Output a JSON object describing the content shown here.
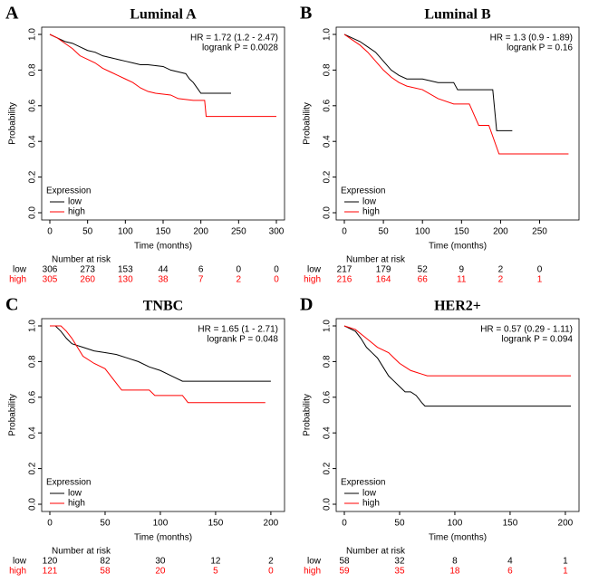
{
  "chart_data": [
    {
      "type": "line",
      "panel": "A",
      "title": "Luminal A",
      "annotations": [
        "HR = 1.72 (1.2 - 2.47)",
        "logrank P = 0.0028"
      ],
      "x_label": "Time (months)",
      "y_label": "Probability",
      "xlim": [
        0,
        300
      ],
      "ylim": [
        0,
        1
      ],
      "xticks": [
        0,
        50,
        100,
        150,
        200,
        250,
        300
      ],
      "yticks": [
        {
          "value": 0,
          "label": "0.0"
        },
        0.2,
        0.4,
        0.6,
        0.8,
        {
          "value": 1,
          "label": "1.0"
        }
      ],
      "legend_title": "Expression",
      "legend": "bottom left",
      "series": [
        {
          "name": "low",
          "color": "#000000",
          "x": [
            0,
            10,
            20,
            30,
            40,
            50,
            60,
            70,
            80,
            90,
            100,
            110,
            120,
            130,
            150,
            160,
            170,
            180,
            185,
            190,
            195,
            200,
            240
          ],
          "values": [
            1,
            0.98,
            0.96,
            0.95,
            0.93,
            0.91,
            0.9,
            0.88,
            0.87,
            0.86,
            0.85,
            0.84,
            0.83,
            0.83,
            0.82,
            0.8,
            0.79,
            0.78,
            0.75,
            0.73,
            0.7,
            0.67,
            0.67
          ]
        },
        {
          "name": "high",
          "color": "#ff0000",
          "x": [
            0,
            10,
            20,
            30,
            40,
            50,
            60,
            70,
            80,
            90,
            100,
            110,
            120,
            130,
            140,
            160,
            170,
            190,
            205,
            207,
            300
          ],
          "values": [
            1,
            0.98,
            0.95,
            0.92,
            0.88,
            0.86,
            0.84,
            0.81,
            0.79,
            0.77,
            0.75,
            0.73,
            0.7,
            0.68,
            0.67,
            0.66,
            0.64,
            0.63,
            0.63,
            0.54,
            0.54
          ]
        }
      ],
      "at_risk": {
        "title": "Number at risk",
        "rows": [
          {
            "name": "low",
            "values": [
              306,
              273,
              153,
              44,
              6,
              0,
              0
            ]
          },
          {
            "name": "high",
            "values": [
              305,
              260,
              130,
              38,
              7,
              2,
              0
            ]
          }
        ]
      }
    },
    {
      "type": "line",
      "panel": "B",
      "title": "Luminal B",
      "annotations": [
        "HR = 1.3 (0.9 - 1.89)",
        "logrank P = 0.16"
      ],
      "x_label": "Time (months)",
      "y_label": "Probability",
      "xlim": [
        0,
        290
      ],
      "ylim": [
        0,
        1
      ],
      "xticks": [
        0,
        50,
        100,
        150,
        200,
        250
      ],
      "yticks": [
        {
          "value": 0,
          "label": "0.0"
        },
        0.2,
        0.4,
        0.6,
        0.8,
        {
          "value": 1,
          "label": "1.0"
        }
      ],
      "legend_title": "Expression",
      "legend": "bottom left",
      "series": [
        {
          "name": "low",
          "color": "#000000",
          "x": [
            0,
            10,
            20,
            30,
            40,
            50,
            60,
            70,
            80,
            100,
            120,
            140,
            145,
            190,
            195,
            215
          ],
          "values": [
            1,
            0.98,
            0.96,
            0.93,
            0.9,
            0.85,
            0.8,
            0.77,
            0.75,
            0.75,
            0.73,
            0.73,
            0.69,
            0.69,
            0.46,
            0.46
          ]
        },
        {
          "name": "high",
          "color": "#ff0000",
          "x": [
            0,
            10,
            20,
            30,
            40,
            50,
            60,
            70,
            80,
            100,
            120,
            140,
            160,
            172,
            185,
            198,
            287
          ],
          "values": [
            1,
            0.97,
            0.94,
            0.9,
            0.85,
            0.8,
            0.76,
            0.73,
            0.71,
            0.69,
            0.64,
            0.61,
            0.61,
            0.49,
            0.49,
            0.33,
            0.33
          ]
        }
      ],
      "at_risk": {
        "title": "Number at risk",
        "rows": [
          {
            "name": "low",
            "values": [
              217,
              179,
              52,
              9,
              2,
              0
            ]
          },
          {
            "name": "high",
            "values": [
              216,
              164,
              66,
              11,
              2,
              1
            ]
          }
        ]
      }
    },
    {
      "type": "line",
      "panel": "C",
      "title": "TNBC",
      "annotations": [
        "HR = 1.65 (1 - 2.71)",
        "logrank P = 0.048"
      ],
      "x_label": "Time (months)",
      "y_label": "Probability",
      "xlim": [
        0,
        205
      ],
      "ylim": [
        0,
        1
      ],
      "xticks": [
        0,
        50,
        100,
        150,
        200
      ],
      "yticks": [
        {
          "value": 0,
          "label": "0.0"
        },
        0.2,
        0.4,
        0.6,
        0.8,
        {
          "value": 1,
          "label": "1.0"
        }
      ],
      "legend_title": "Expression",
      "legend": "bottom left",
      "series": [
        {
          "name": "low",
          "color": "#000000",
          "x": [
            0,
            5,
            10,
            15,
            20,
            30,
            40,
            50,
            60,
            70,
            80,
            90,
            100,
            110,
            120,
            200
          ],
          "values": [
            1,
            1,
            0.97,
            0.93,
            0.9,
            0.88,
            0.86,
            0.85,
            0.84,
            0.82,
            0.8,
            0.77,
            0.75,
            0.72,
            0.69,
            0.69
          ]
        },
        {
          "name": "high",
          "color": "#ff0000",
          "x": [
            0,
            10,
            15,
            20,
            25,
            30,
            40,
            50,
            55,
            60,
            65,
            90,
            95,
            120,
            125,
            195
          ],
          "values": [
            1,
            1,
            0.97,
            0.93,
            0.88,
            0.83,
            0.79,
            0.76,
            0.72,
            0.68,
            0.64,
            0.64,
            0.61,
            0.61,
            0.57,
            0.57
          ]
        }
      ],
      "at_risk": {
        "title": "Number at risk",
        "rows": [
          {
            "name": "low",
            "values": [
              120,
              82,
              30,
              12,
              2
            ]
          },
          {
            "name": "high",
            "values": [
              121,
              58,
              20,
              5,
              0
            ]
          }
        ]
      }
    },
    {
      "type": "line",
      "panel": "D",
      "title": "HER2+",
      "annotations": [
        "HR = 0.57 (0.29 - 1.11)",
        "logrank P = 0.094"
      ],
      "x_label": "Time (months)",
      "y_label": "Probability",
      "xlim": [
        0,
        205
      ],
      "ylim": [
        0,
        1
      ],
      "xticks": [
        0,
        50,
        100,
        150,
        200
      ],
      "yticks": [
        {
          "value": 0,
          "label": "0.0"
        },
        0.2,
        0.4,
        0.6,
        0.8,
        {
          "value": 1,
          "label": "1.0"
        }
      ],
      "legend_title": "Expression",
      "legend": "bottom left",
      "series": [
        {
          "name": "low",
          "color": "#000000",
          "x": [
            0,
            10,
            15,
            20,
            25,
            30,
            35,
            40,
            45,
            50,
            55,
            60,
            65,
            70,
            73,
            205
          ],
          "values": [
            1,
            0.97,
            0.93,
            0.88,
            0.85,
            0.82,
            0.77,
            0.72,
            0.69,
            0.66,
            0.63,
            0.63,
            0.61,
            0.57,
            0.55,
            0.55
          ]
        },
        {
          "name": "high",
          "color": "#ff0000",
          "x": [
            0,
            10,
            20,
            30,
            40,
            45,
            50,
            55,
            60,
            65,
            70,
            75,
            205
          ],
          "values": [
            1,
            0.98,
            0.93,
            0.88,
            0.85,
            0.82,
            0.79,
            0.77,
            0.75,
            0.74,
            0.73,
            0.72,
            0.72
          ]
        }
      ],
      "at_risk": {
        "title": "Number at risk",
        "rows": [
          {
            "name": "low",
            "values": [
              58,
              32,
              8,
              4,
              1
            ]
          },
          {
            "name": "high",
            "values": [
              59,
              35,
              18,
              6,
              1
            ]
          }
        ]
      }
    }
  ]
}
